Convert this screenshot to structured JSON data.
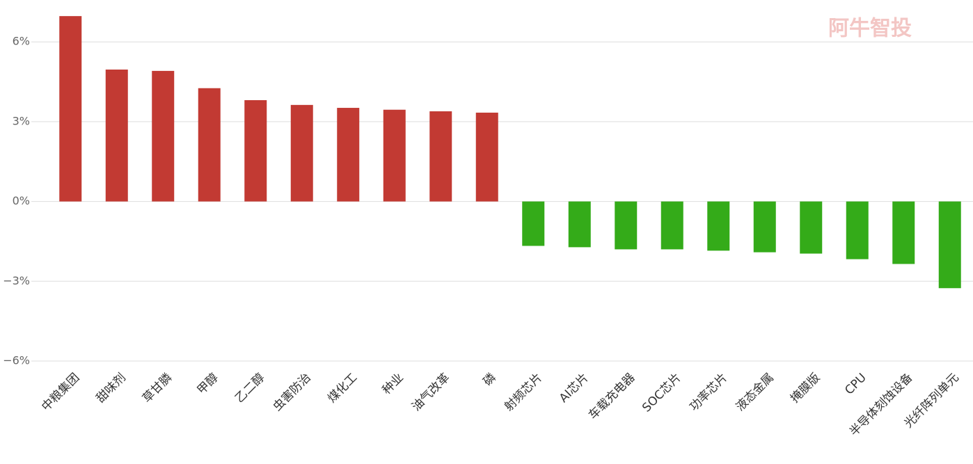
{
  "chart_data": {
    "type": "bar",
    "watermark": "阿牛智投",
    "categories": [
      "中粮集团",
      "甜味剂",
      "草甘膦",
      "甲醇",
      "乙二醇",
      "虫害防治",
      "煤化工",
      "种业",
      "油气改革",
      "磷",
      "射频芯片",
      "AI芯片",
      "车载充电器",
      "SOC芯片",
      "功率芯片",
      "液态金属",
      "掩膜版",
      "CPU",
      "半导体刻蚀设备",
      "光纤阵列单元"
    ],
    "values": [
      6.97,
      4.96,
      4.91,
      4.26,
      3.81,
      3.63,
      3.52,
      3.45,
      3.39,
      3.34,
      -1.67,
      -1.72,
      -1.8,
      -1.8,
      -1.85,
      -1.91,
      -1.96,
      -2.17,
      -2.35,
      -3.26
    ],
    "positive_color": "#c23a33",
    "negative_color": "#34ab19",
    "ylim": [
      -6,
      7
    ],
    "yticks": [
      {
        "value": -6,
        "label": "−6%"
      },
      {
        "value": -3,
        "label": "−3%"
      },
      {
        "value": 0,
        "label": "0%"
      },
      {
        "value": 3,
        "label": "3%"
      },
      {
        "value": 6,
        "label": "6%"
      }
    ],
    "grid": true
  }
}
